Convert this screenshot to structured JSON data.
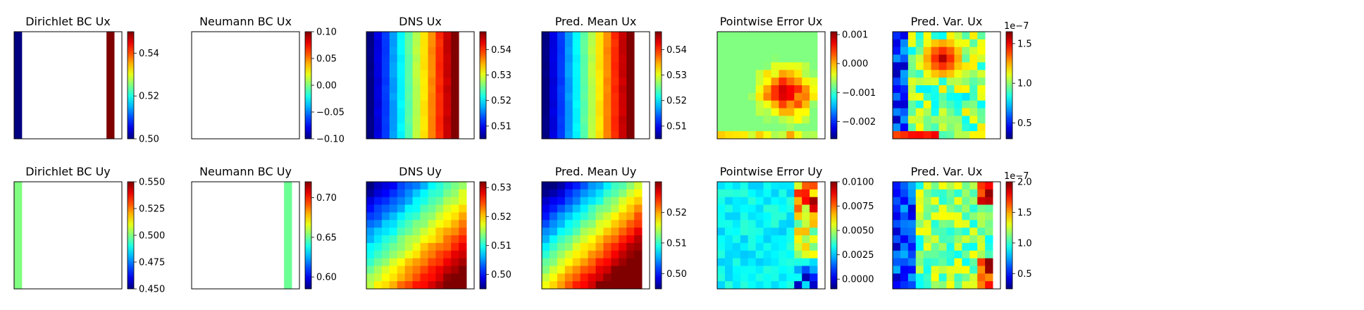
{
  "colormap": "jet",
  "chart_data": [
    {
      "type": "heatmap",
      "title": "Dirichlet BC Ux",
      "field": "dirichlet_ux",
      "clim": [
        0.5,
        0.55
      ],
      "colorbar_ticks": [
        "0.50",
        "0.52",
        "0.54"
      ],
      "colorbar_ticks_values": [
        0.5,
        0.52,
        0.54
      ],
      "xlabel": "",
      "ylabel": "",
      "notes": "left column ≈0.50, right column ≈0.55, rest empty"
    },
    {
      "type": "heatmap",
      "title": "Neumann BC Ux",
      "field": "empty",
      "clim": [
        -0.1,
        0.1
      ],
      "colorbar_ticks": [
        "−0.10",
        "−0.05",
        "0.00",
        "0.05",
        "0.10"
      ],
      "colorbar_ticks_values": [
        -0.1,
        -0.05,
        0.0,
        0.05,
        0.1
      ]
    },
    {
      "type": "heatmap",
      "title": "DNS Ux",
      "field": "gradient_x",
      "clim": [
        0.505,
        0.547
      ],
      "colorbar_ticks": [
        "0.51",
        "0.52",
        "0.53",
        "0.54"
      ],
      "colorbar_ticks_values": [
        0.51,
        0.52,
        0.53,
        0.54
      ]
    },
    {
      "type": "heatmap",
      "title": "Pred. Mean Ux",
      "field": "gradient_x",
      "clim": [
        0.505,
        0.547
      ],
      "colorbar_ticks": [
        "0.51",
        "0.52",
        "0.53",
        "0.54"
      ],
      "colorbar_ticks_values": [
        0.51,
        0.52,
        0.53,
        0.54
      ]
    },
    {
      "type": "heatmap",
      "title": "Pointwise Error Ux",
      "field": "error_ux",
      "clim": [
        -0.0026,
        0.0011
      ],
      "colorbar_ticks": [
        "−0.002",
        "−0.001",
        "0.000",
        "0.001"
      ],
      "colorbar_ticks_values": [
        -0.002,
        -0.001,
        0.0,
        0.001
      ]
    },
    {
      "type": "heatmap",
      "title": "Pred. Var. Ux",
      "field": "var_ux",
      "clim": [
        0.3,
        1.65
      ],
      "colorbar_ticks": [
        "0.5",
        "1.0",
        "1.5"
      ],
      "colorbar_ticks_values": [
        0.5,
        1.0,
        1.5
      ],
      "offset_text": "1e−7"
    },
    {
      "type": "heatmap",
      "title": "Dirichlet BC Uy",
      "field": "dirichlet_uy",
      "clim": [
        0.45,
        0.55
      ],
      "colorbar_ticks": [
        "0.450",
        "0.475",
        "0.500",
        "0.525",
        "0.550"
      ],
      "colorbar_ticks_values": [
        0.45,
        0.475,
        0.5,
        0.525,
        0.55
      ],
      "notes": "left column ≈0.50"
    },
    {
      "type": "heatmap",
      "title": "Neumann BC Uy",
      "field": "neumann_uy",
      "clim": [
        0.585,
        0.72
      ],
      "colorbar_ticks": [
        "0.60",
        "0.65",
        "0.70"
      ],
      "colorbar_ticks_values": [
        0.6,
        0.65,
        0.7
      ],
      "notes": "right column ≈0.65"
    },
    {
      "type": "heatmap",
      "title": "DNS Uy",
      "field": "gradient_diag",
      "clim": [
        0.495,
        0.532
      ],
      "colorbar_ticks": [
        "0.50",
        "0.51",
        "0.52",
        "0.53"
      ],
      "colorbar_ticks_values": [
        0.5,
        0.51,
        0.52,
        0.53
      ]
    },
    {
      "type": "heatmap",
      "title": "Pred. Mean Uy",
      "field": "gradient_diag_strong",
      "clim": [
        0.495,
        0.53
      ],
      "colorbar_ticks": [
        "0.50",
        "0.51",
        "0.52"
      ],
      "colorbar_ticks_values": [
        0.5,
        0.51,
        0.52
      ]
    },
    {
      "type": "heatmap",
      "title": "Pointwise Error Uy",
      "field": "error_uy",
      "clim": [
        -0.001,
        0.01
      ],
      "colorbar_ticks": [
        "0.0000",
        "0.0025",
        "0.0050",
        "0.0075",
        "0.0100"
      ],
      "colorbar_ticks_values": [
        0.0,
        0.0025,
        0.005,
        0.0075,
        0.01
      ]
    },
    {
      "type": "heatmap",
      "title": "Pred. Var. Ux",
      "field": "var_uy",
      "clim": [
        0.25,
        2.0
      ],
      "colorbar_ticks": [
        "0.5",
        "1.0",
        "1.5",
        "2.0"
      ],
      "colorbar_ticks_values": [
        0.5,
        1.0,
        1.5,
        2.0
      ],
      "offset_text": "1e−7"
    }
  ]
}
